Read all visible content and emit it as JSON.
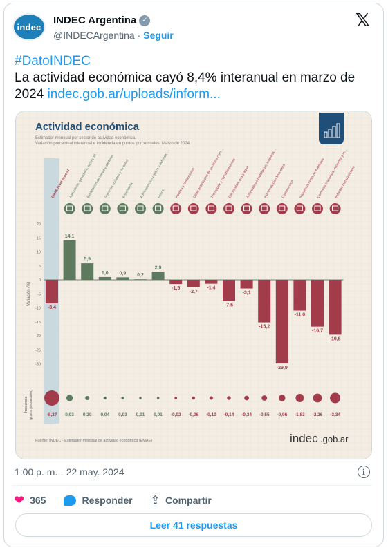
{
  "author": {
    "avatar_text": "indec",
    "name": "INDEC Argentina",
    "handle": "@INDECArgentina",
    "separator": "·",
    "follow": "Seguir",
    "verified_icon": "verified-badge-icon"
  },
  "tweet": {
    "hashtag": "#DatoINDEC",
    "text": "La actividad económica cayó 8,4% interanual en marzo de 2024",
    "link": "indec.gob.ar/uploads/inform..."
  },
  "chart_data": {
    "type": "bar",
    "title": "Actividad económica",
    "subtitle_1": "Estimador mensual por sector de actividad económica.",
    "subtitle_2": "Variación porcentual interanual e incidencia en puntos porcentuales. Marzo de 2024.",
    "ylabel": "Variación (%)",
    "incidence_label": "Incidencia",
    "incidence_unit": "(puntos porcentuales)",
    "ylim": [
      -35,
      20
    ],
    "yticks": [
      20,
      15,
      10,
      5,
      0,
      -5,
      -10,
      -15,
      -20,
      -25,
      -30
    ],
    "categories": [
      "EMAE Nivel general",
      "Agricultura, ganadería, caza y silvicultura",
      "Explotación de minas y canteras",
      "Servicios sociales y de salud",
      "Enseñanza",
      "Administración pública y defensa; planes de seguridad social de afiliación obligatoria",
      "Pesca",
      "Hoteles y restaurantes",
      "Otras actividades de servicios comunitarios, sociales y personales",
      "Transporte y comunicaciones",
      "Electricidad, gas y agua",
      "Actividades inmobiliarias, empresariales y de alquiler",
      "Intermediación financiera",
      "Construcción",
      "Impuestos netos de subsidios",
      "Comercio mayorista, minorista y reparaciones",
      "Industria manufacturera"
    ],
    "values": [
      -8.4,
      14.1,
      5.9,
      1.0,
      0.9,
      0.2,
      2.9,
      -1.5,
      -2.7,
      -1.4,
      -7.5,
      -3.1,
      -15.2,
      -29.9,
      -11.0,
      -16.7,
      -19.6
    ],
    "value_labels": [
      "-8,4",
      "14,1",
      "5,9",
      "1,0",
      "0,9",
      "0,2",
      "2,9",
      "-1,5",
      "-2,7",
      "-1,4",
      "-7,5",
      "-3,1",
      "-15,2",
      "-29,9",
      "-11,0",
      "-16,7",
      "-19,6"
    ],
    "incidence": [
      -8.37,
      0.93,
      0.2,
      0.04,
      0.03,
      0.01,
      0.01,
      -0.02,
      -0.06,
      -0.1,
      -0.14,
      -0.34,
      -0.55,
      -0.96,
      -1.83,
      -2.26,
      -3.34
    ],
    "incidence_labels": [
      "-8,37",
      "0,93",
      "0,20",
      "0,04",
      "0,03",
      "0,01",
      "0,01",
      "-0,02",
      "-0,06",
      "-0,10",
      "-0,14",
      "-0,34",
      "-0,55",
      "-0,96",
      "-1,83",
      "-2,26",
      "-3,34"
    ],
    "source": "Fuente: INDEC - Estimador mensual de actividad económica (EMAE)",
    "logo_text": "indec",
    "logo_domain": ".gob.ar",
    "colors": {
      "positive": "#5e7a5e",
      "negative": "#a23b4a",
      "total": "#a23b4a",
      "total_band": "#c9d9de",
      "title": "#1f4e79"
    }
  },
  "footer": {
    "timestamp": "1:00 p. m. · 22 may. 2024",
    "likes": "365",
    "reply": "Responder",
    "share": "Compartir",
    "read_replies": "Leer 41 respuestas"
  }
}
